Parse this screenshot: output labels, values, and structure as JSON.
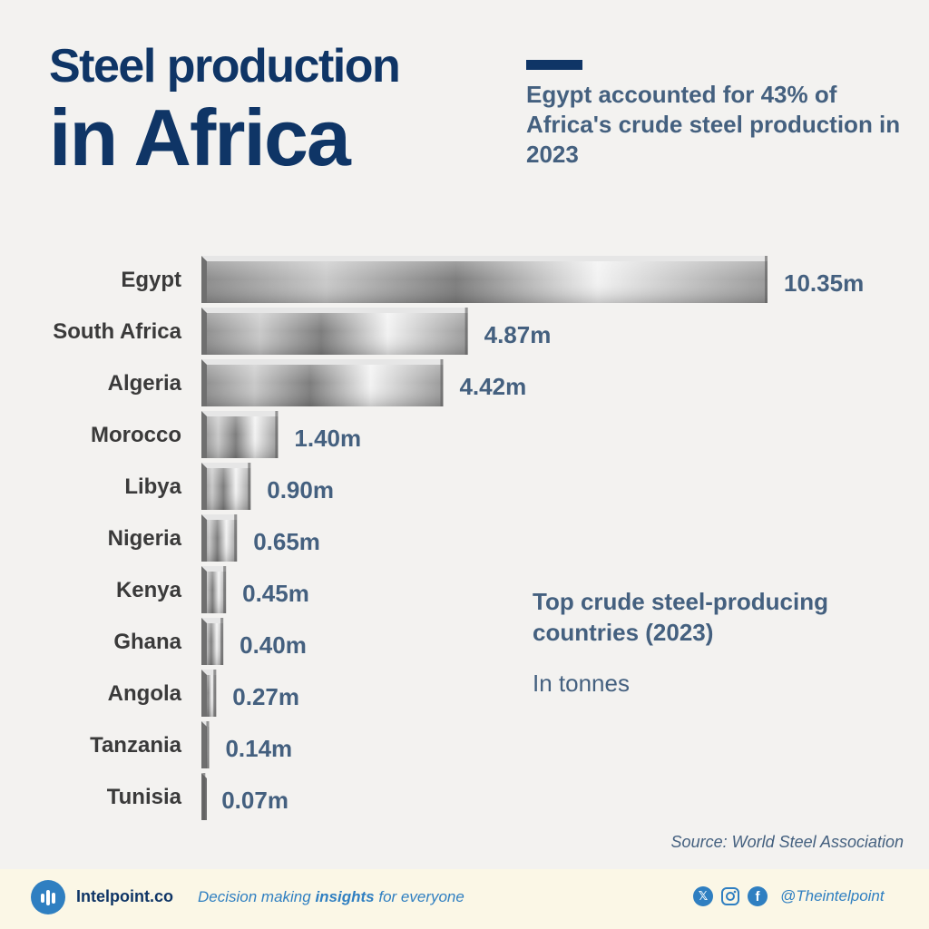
{
  "header": {
    "title_line1": "Steel production",
    "title_line2": "in Africa",
    "subtitle": "Egypt accounted for 43% of Africa's crude steel production in 2023"
  },
  "notes": {
    "chart_title": "Top crude steel-producing countries (2023)",
    "unit": "In tonnes",
    "source": "Source: World Steel Association"
  },
  "footer": {
    "brand": "Intelpoint.co",
    "tagline_pre": "Decision making ",
    "tagline_bold": "insights",
    "tagline_post": " for everyone",
    "social_icons": [
      "x-icon",
      "instagram-icon",
      "facebook-icon"
    ],
    "handle": "@Theintelpoint"
  },
  "colors": {
    "title": "#0f3566",
    "text_blue": "#44607f",
    "label_dark": "#3a3a3a",
    "footer_bg": "#fbf7e6",
    "accent": "#2f7fc1"
  },
  "chart_data": {
    "type": "bar",
    "orientation": "horizontal",
    "categories": [
      "Egypt",
      "South Africa",
      "Algeria",
      "Morocco",
      "Libya",
      "Nigeria",
      "Kenya",
      "Ghana",
      "Angola",
      "Tanzania",
      "Tunisia"
    ],
    "values": [
      10.35,
      4.87,
      4.42,
      1.4,
      0.9,
      0.65,
      0.45,
      0.4,
      0.27,
      0.14,
      0.07
    ],
    "value_labels": [
      "10.35m",
      "4.87m",
      "4.42m",
      "1.40m",
      "0.90m",
      "0.65m",
      "0.45m",
      "0.40m",
      "0.27m",
      "0.14m",
      "0.07m"
    ],
    "unit": "m",
    "grid": false,
    "legend": "none"
  }
}
